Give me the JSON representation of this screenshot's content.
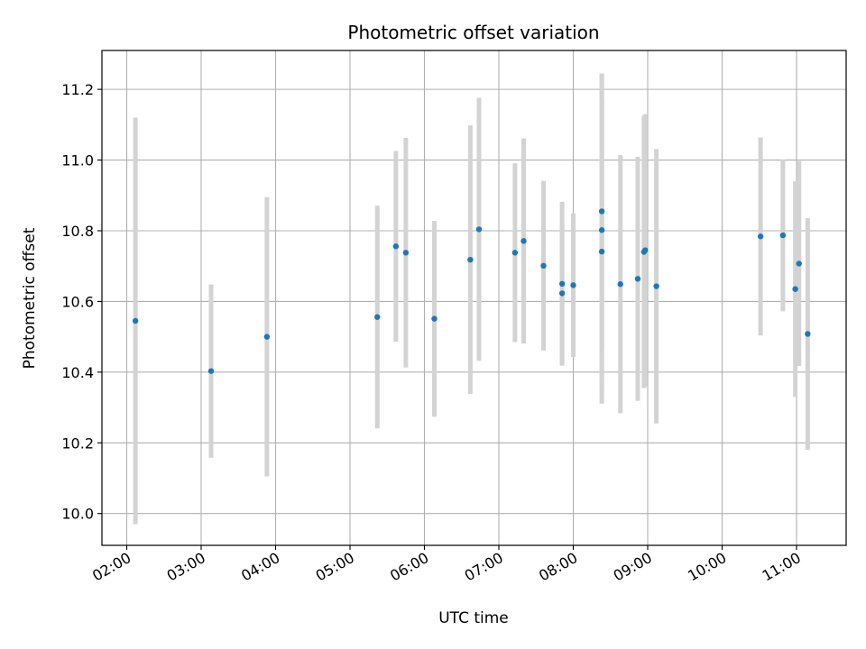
{
  "chart_data": {
    "type": "scatter",
    "title": "Photometric offset variation",
    "xlabel": "UTC time",
    "ylabel": "Photometric offset",
    "x_tick_labels": [
      "02:00",
      "03:00",
      "04:00",
      "05:00",
      "06:00",
      "07:00",
      "08:00",
      "09:00",
      "10:00",
      "11:00"
    ],
    "x_ticks_hours": [
      2,
      3,
      4,
      5,
      6,
      7,
      8,
      9,
      10,
      11
    ],
    "y_tick_labels": [
      "10.0",
      "10.2",
      "10.4",
      "10.6",
      "10.8",
      "11.0",
      "11.2"
    ],
    "y_ticks": [
      10.0,
      10.2,
      10.4,
      10.6,
      10.8,
      11.0,
      11.2
    ],
    "xlim": [
      "01:40",
      "11:40"
    ],
    "ylim": [
      9.91,
      11.31
    ],
    "grid": true,
    "marker_color": "#1f77b4",
    "errorbar_color": "#d3d3d3",
    "points": [
      {
        "x": "02:07",
        "y": 10.545,
        "err": 0.575
      },
      {
        "x": "03:08",
        "y": 10.403,
        "err": 0.245
      },
      {
        "x": "03:53",
        "y": 10.5,
        "err": 0.395
      },
      {
        "x": "05:22",
        "y": 10.556,
        "err": 0.315
      },
      {
        "x": "05:37",
        "y": 10.756,
        "err": 0.27
      },
      {
        "x": "05:45",
        "y": 10.738,
        "err": 0.325
      },
      {
        "x": "06:08",
        "y": 10.551,
        "err": 0.277
      },
      {
        "x": "06:37",
        "y": 10.718,
        "err": 0.38
      },
      {
        "x": "06:44",
        "y": 10.804,
        "err": 0.372
      },
      {
        "x": "07:13",
        "y": 10.738,
        "err": 0.253
      },
      {
        "x": "07:20",
        "y": 10.771,
        "err": 0.29
      },
      {
        "x": "07:36",
        "y": 10.701,
        "err": 0.24
      },
      {
        "x": "07:51",
        "y": 10.65,
        "err": 0.232
      },
      {
        "x": "07:51",
        "y": 10.623,
        "err": 0.2
      },
      {
        "x": "08:00",
        "y": 10.646,
        "err": 0.203
      },
      {
        "x": "08:23",
        "y": 10.855,
        "err": 0.39
      },
      {
        "x": "08:23",
        "y": 10.802,
        "err": 0.44
      },
      {
        "x": "08:23",
        "y": 10.741,
        "err": 0.43
      },
      {
        "x": "08:38",
        "y": 10.649,
        "err": 0.365
      },
      {
        "x": "08:52",
        "y": 10.664,
        "err": 0.345
      },
      {
        "x": "08:57",
        "y": 10.74,
        "err": 0.385
      },
      {
        "x": "08:58",
        "y": 10.745,
        "err": 0.385
      },
      {
        "x": "09:07",
        "y": 10.643,
        "err": 0.388
      },
      {
        "x": "10:31",
        "y": 10.784,
        "err": 0.28
      },
      {
        "x": "10:49",
        "y": 10.787,
        "err": 0.215
      },
      {
        "x": "10:59",
        "y": 10.635,
        "err": 0.305
      },
      {
        "x": "11:02",
        "y": 10.707,
        "err": 0.29
      },
      {
        "x": "11:09",
        "y": 10.508,
        "err": 0.328
      }
    ]
  }
}
